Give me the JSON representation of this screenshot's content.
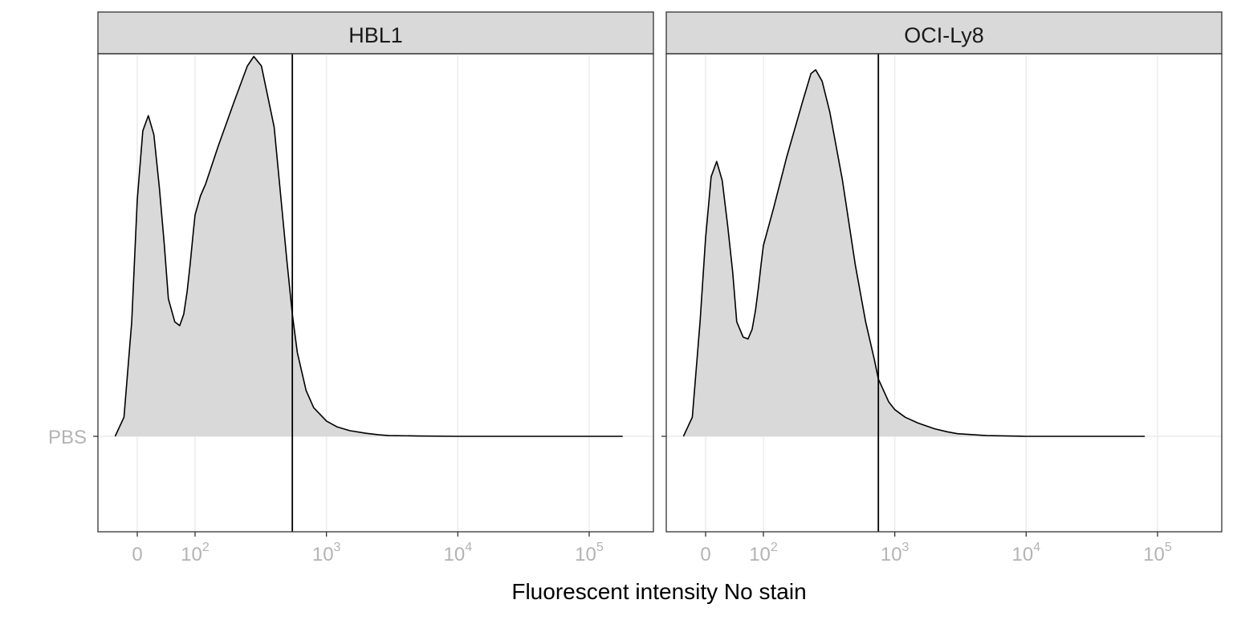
{
  "chart_data": {
    "type": "area",
    "title": "",
    "xlabel": "Fluorescent intensity No stain",
    "ylabel": "",
    "x_scale": "biexponential (linear near 0, log above)",
    "grid": true,
    "legend": "none",
    "y_categories": [
      "PBS"
    ],
    "x_ticks": [
      {
        "value": 0,
        "base": "0",
        "exp": ""
      },
      {
        "value": 100,
        "base": "10",
        "exp": "2"
      },
      {
        "value": 1000,
        "base": "10",
        "exp": "3"
      },
      {
        "value": 10000,
        "base": "10",
        "exp": "4"
      },
      {
        "value": 100000,
        "base": "10",
        "exp": "5"
      }
    ],
    "colors": {
      "fill": "#d9d9d9",
      "line": "#000000",
      "strip": "#d9d9d9"
    },
    "panels": [
      {
        "strip_label": "HBL1",
        "category": "PBS",
        "threshold": 550,
        "x": [
          -20,
          -12,
          -5,
          0,
          5,
          10,
          15,
          20,
          25,
          30,
          40,
          50,
          60,
          70,
          80,
          90,
          100,
          110,
          120,
          150,
          200,
          250,
          280,
          320,
          400,
          500,
          550,
          600,
          700,
          800,
          1000,
          1200,
          1500,
          2000,
          2500,
          3000,
          5000,
          10000,
          20000,
          50000,
          100000,
          180000
        ],
        "density": [
          0.0,
          0.05,
          0.3,
          0.62,
          0.8,
          0.84,
          0.79,
          0.65,
          0.5,
          0.36,
          0.3,
          0.29,
          0.32,
          0.38,
          0.45,
          0.52,
          0.58,
          0.63,
          0.66,
          0.76,
          0.88,
          0.97,
          0.995,
          0.97,
          0.81,
          0.46,
          0.32,
          0.22,
          0.12,
          0.075,
          0.04,
          0.025,
          0.015,
          0.008,
          0.004,
          0.002,
          0.001,
          0.0,
          0.0,
          0.0,
          0.0,
          0.0
        ]
      },
      {
        "strip_label": "OCI-Ly8",
        "category": "PBS",
        "threshold": 750,
        "x": [
          -20,
          -12,
          -5,
          0,
          5,
          10,
          15,
          20,
          25,
          30,
          40,
          50,
          60,
          70,
          80,
          90,
          100,
          120,
          150,
          200,
          230,
          250,
          280,
          320,
          400,
          500,
          600,
          700,
          750,
          900,
          1000,
          1200,
          1500,
          2000,
          2500,
          3000,
          5000,
          10000,
          20000,
          40000,
          80000
        ],
        "density": [
          0.0,
          0.05,
          0.3,
          0.52,
          0.68,
          0.72,
          0.67,
          0.55,
          0.43,
          0.3,
          0.26,
          0.255,
          0.28,
          0.33,
          0.39,
          0.45,
          0.5,
          0.6,
          0.73,
          0.88,
          0.95,
          0.96,
          0.93,
          0.85,
          0.67,
          0.45,
          0.3,
          0.2,
          0.15,
          0.09,
          0.07,
          0.05,
          0.035,
          0.02,
          0.012,
          0.007,
          0.002,
          0.0,
          0.0,
          0.0,
          0.0
        ]
      }
    ]
  }
}
